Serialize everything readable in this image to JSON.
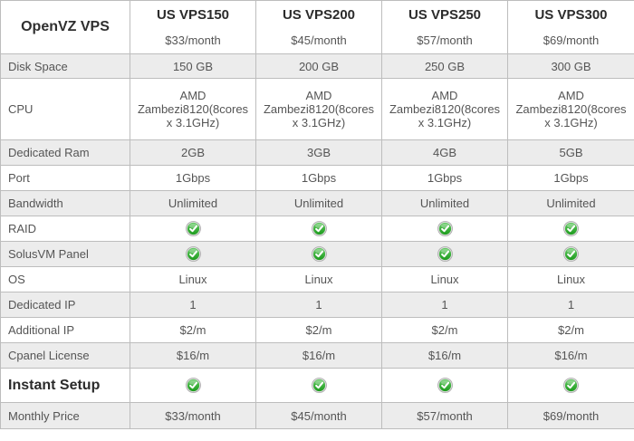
{
  "colors": {
    "border": "#bdbdbd",
    "alt_row_bg": "#ececec",
    "value_text": "#555555",
    "heading_text": "#2b2b2b",
    "check_green_light": "#63ca63",
    "check_green_dark": "#1d9b1d",
    "check_ring": "#a9a9a9",
    "check_mark": "#ffffff"
  },
  "table": {
    "corner_label": "OpenVZ VPS",
    "plans": [
      {
        "name": "US VPS150",
        "price": "$33/month"
      },
      {
        "name": "US VPS200",
        "price": "$45/month"
      },
      {
        "name": "US VPS250",
        "price": "$57/month"
      },
      {
        "name": "US VPS300",
        "price": "$69/month"
      }
    ],
    "rows": [
      {
        "key": "disk-space",
        "label": "Disk Space",
        "type": "text",
        "values": [
          "150 GB",
          "200 GB",
          "250 GB",
          "300 GB"
        ]
      },
      {
        "key": "cpu",
        "label": "CPU",
        "type": "text",
        "values": [
          "AMD Zambezi8120(8cores x 3.1GHz)",
          "AMD Zambezi8120(8cores x 3.1GHz)",
          "AMD Zambezi8120(8cores x 3.1GHz)",
          "AMD Zambezi8120(8cores x 3.1GHz)"
        ]
      },
      {
        "key": "dedicated-ram",
        "label": "Dedicated Ram",
        "type": "text",
        "values": [
          "2GB",
          "3GB",
          "4GB",
          "5GB"
        ]
      },
      {
        "key": "port",
        "label": "Port",
        "type": "text",
        "values": [
          "1Gbps",
          "1Gbps",
          "1Gbps",
          "1Gbps"
        ]
      },
      {
        "key": "bandwidth",
        "label": "Bandwidth",
        "type": "text",
        "values": [
          "Unlimited",
          "Unlimited",
          "Unlimited",
          "Unlimited"
        ]
      },
      {
        "key": "raid",
        "label": "RAID",
        "type": "check",
        "icon": "green-check-icon"
      },
      {
        "key": "solusvm-panel",
        "label": "SolusVM Panel",
        "type": "check",
        "icon": "green-check-icon"
      },
      {
        "key": "os",
        "label": "OS",
        "type": "text",
        "values": [
          "Linux",
          "Linux",
          "Linux",
          "Linux"
        ]
      },
      {
        "key": "dedicated-ip",
        "label": "Dedicated IP",
        "type": "text",
        "values": [
          "1",
          "1",
          "1",
          "1"
        ]
      },
      {
        "key": "additional-ip",
        "label": "Additional IP",
        "type": "text",
        "values": [
          "$2/m",
          "$2/m",
          "$2/m",
          "$2/m"
        ]
      },
      {
        "key": "cpanel-license",
        "label": "Cpanel License",
        "type": "text",
        "values": [
          "$16/m",
          "$16/m",
          "$16/m",
          "$16/m"
        ]
      },
      {
        "key": "instant-setup",
        "label": "Instant Setup",
        "type": "check",
        "icon": "green-check-icon",
        "emphasis": true
      },
      {
        "key": "monthly-price",
        "label": "Monthly Price",
        "type": "text",
        "values": [
          "$33/month",
          "$45/month",
          "$57/month",
          "$69/month"
        ]
      }
    ]
  }
}
